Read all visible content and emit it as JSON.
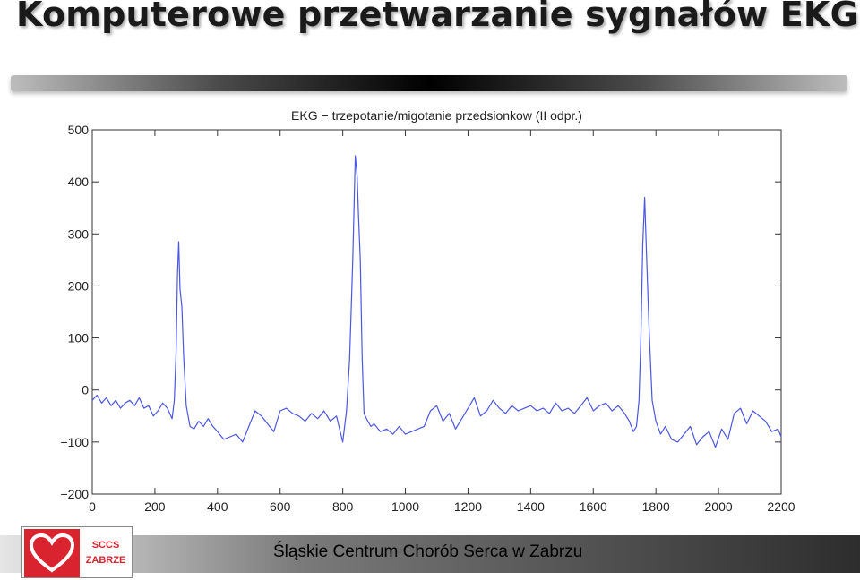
{
  "slide": {
    "title": "Komputerowe przetwarzanie sygnałów EKG",
    "footer": "Śląskie Centrum Chorób Serca w Zabrzu",
    "logo": {
      "line1": "SCCS",
      "line2": "ZABRZE",
      "icon": "heart-logo-icon",
      "color": "#d9232e"
    }
  },
  "chart_data": {
    "type": "line",
    "title": "EKG − trzepotanie/migotanie przedsionkow (II odpr.)",
    "xlabel": "",
    "ylabel": "",
    "xlim": [
      0,
      2200
    ],
    "ylim": [
      -200,
      500
    ],
    "x_ticks": [
      0,
      200,
      400,
      600,
      800,
      1000,
      1200,
      1400,
      1600,
      1800,
      2000,
      2200
    ],
    "y_ticks": [
      -200,
      -100,
      0,
      100,
      200,
      300,
      400,
      500
    ],
    "grid": false,
    "line_color": "#4b57e0",
    "series": [
      {
        "x": [
          0,
          15,
          30,
          45,
          60,
          75,
          90,
          105,
          120,
          135,
          150,
          165,
          180,
          195,
          210,
          225,
          240,
          255,
          262,
          268,
          272,
          276,
          280,
          286,
          292,
          300,
          312,
          325,
          340,
          355,
          370,
          385,
          400,
          420,
          440,
          460,
          480,
          500,
          520,
          540,
          560,
          580,
          600,
          620,
          640,
          660,
          680,
          700,
          720,
          740,
          760,
          780,
          800,
          812,
          822,
          832,
          840,
          846,
          850,
          856,
          862,
          868,
          880,
          890,
          900,
          920,
          940,
          960,
          980,
          1000,
          1020,
          1040,
          1060,
          1080,
          1100,
          1120,
          1140,
          1160,
          1180,
          1200,
          1220,
          1240,
          1260,
          1280,
          1300,
          1320,
          1340,
          1360,
          1380,
          1400,
          1420,
          1440,
          1460,
          1480,
          1500,
          1520,
          1540,
          1560,
          1580,
          1600,
          1620,
          1640,
          1660,
          1680,
          1700,
          1715,
          1728,
          1738,
          1746,
          1752,
          1758,
          1764,
          1770,
          1778,
          1788,
          1800,
          1815,
          1830,
          1850,
          1870,
          1890,
          1910,
          1930,
          1950,
          1970,
          1990,
          2010,
          2030,
          2050,
          2070,
          2090,
          2110,
          2130,
          2150,
          2170,
          2190,
          2200
        ],
        "y": [
          -20,
          -10,
          -25,
          -15,
          -30,
          -20,
          -35,
          -25,
          -20,
          -30,
          -15,
          -35,
          -30,
          -50,
          -40,
          -25,
          -35,
          -55,
          -20,
          80,
          220,
          285,
          195,
          160,
          60,
          -30,
          -70,
          -75,
          -60,
          -70,
          -55,
          -70,
          -80,
          -95,
          -90,
          -85,
          -100,
          -70,
          -40,
          -50,
          -65,
          -80,
          -40,
          -35,
          -45,
          -50,
          -60,
          -45,
          -55,
          -40,
          -60,
          -50,
          -100,
          -40,
          60,
          250,
          450,
          410,
          340,
          250,
          60,
          -45,
          -60,
          -70,
          -65,
          -80,
          -75,
          -85,
          -70,
          -85,
          -80,
          -75,
          -70,
          -40,
          -30,
          -60,
          -45,
          -75,
          -55,
          -35,
          -15,
          -50,
          -40,
          -20,
          -35,
          -45,
          -30,
          -40,
          -35,
          -30,
          -40,
          -35,
          -45,
          -25,
          -40,
          -35,
          -45,
          -30,
          -15,
          -40,
          -30,
          -25,
          -40,
          -30,
          -45,
          -60,
          -80,
          -70,
          -20,
          100,
          280,
          370,
          260,
          120,
          -20,
          -60,
          -85,
          -70,
          -95,
          -100,
          -85,
          -70,
          -105,
          -90,
          -80,
          -110,
          -75,
          -95,
          -45,
          -35,
          -65,
          -40,
          -50,
          -60,
          -80,
          -75,
          -90
        ]
      }
    ]
  }
}
